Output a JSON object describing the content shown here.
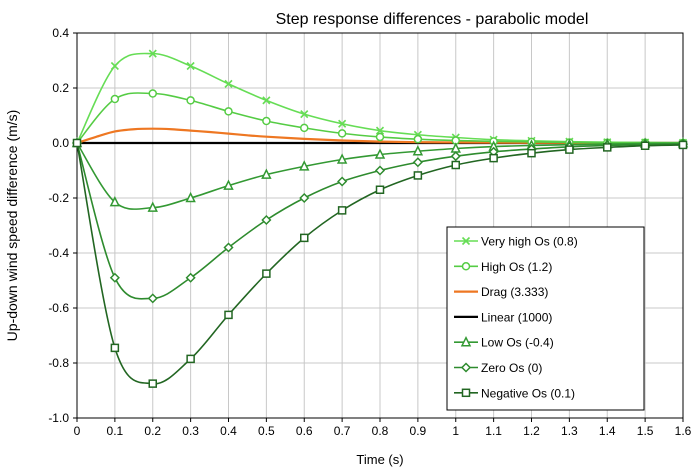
{
  "chart_data": {
    "type": "line",
    "title": "Step response  differences - parabolic model",
    "xlabel": "Time (s)",
    "ylabel": "Up-down wind speed difference (m/s)",
    "xlim": [
      0,
      1.6
    ],
    "ylim": [
      -1.0,
      0.4
    ],
    "x_ticks": [
      "0",
      "0.1",
      "0.2",
      "0.3",
      "0.4",
      "0.5",
      "0.6",
      "0.7",
      "0.8",
      "0.9",
      "1",
      "1.1",
      "1.2",
      "1.3",
      "1.4",
      "1.5",
      "1.6"
    ],
    "y_ticks": [
      "0.4",
      "0.2",
      "0.0",
      "-0.2",
      "-0.4",
      "-0.6",
      "-0.8",
      "-1.0"
    ],
    "grid": true,
    "legend_position": "lower-right",
    "series": [
      {
        "name": "Very high Os (0.8)",
        "color": "#66dd55",
        "marker": "x",
        "x": [
          0,
          0.1,
          0.2,
          0.3,
          0.4,
          0.5,
          0.6,
          0.7,
          0.8,
          0.9,
          1,
          1.1,
          1.2,
          1.3,
          1.4,
          1.5,
          1.6
        ],
        "values": [
          0,
          0.28,
          0.325,
          0.28,
          0.215,
          0.155,
          0.105,
          0.07,
          0.045,
          0.03,
          0.02,
          0.012,
          0.008,
          0.005,
          0.003,
          0.002,
          0.001
        ]
      },
      {
        "name": "High Os (1.2)",
        "color": "#55cc44",
        "marker": "circle",
        "x": [
          0,
          0.1,
          0.2,
          0.3,
          0.4,
          0.5,
          0.6,
          0.7,
          0.8,
          0.9,
          1,
          1.1,
          1.2,
          1.3,
          1.4,
          1.5,
          1.6
        ],
        "values": [
          0,
          0.16,
          0.18,
          0.155,
          0.115,
          0.08,
          0.055,
          0.035,
          0.022,
          0.014,
          0.009,
          0.006,
          0.004,
          0.002,
          0.001,
          0.001,
          0
        ]
      },
      {
        "name": "Drag (3.333)",
        "color": "#ee7722",
        "marker": "none",
        "x": [
          0,
          0.05,
          0.1,
          0.15,
          0.2,
          0.25,
          0.3,
          0.35,
          0.4,
          0.45,
          0.5,
          0.6,
          0.7,
          0.8,
          0.9,
          1,
          1.2,
          1.4,
          1.6
        ],
        "values": [
          0,
          0.022,
          0.042,
          0.05,
          0.052,
          0.05,
          0.045,
          0.04,
          0.034,
          0.028,
          0.023,
          0.015,
          0.009,
          0.005,
          0.003,
          0.002,
          0.001,
          0,
          0
        ]
      },
      {
        "name": "Linear (1000)",
        "color": "#000000",
        "marker": "none",
        "x": [
          0,
          1.6
        ],
        "values": [
          0,
          0
        ]
      },
      {
        "name": "Low Os (-0.4)",
        "color": "#339933",
        "marker": "triangle",
        "x": [
          0,
          0.1,
          0.2,
          0.3,
          0.4,
          0.5,
          0.6,
          0.7,
          0.8,
          0.9,
          1,
          1.1,
          1.2,
          1.3,
          1.4,
          1.5,
          1.6
        ],
        "values": [
          0,
          -0.215,
          -0.235,
          -0.2,
          -0.155,
          -0.115,
          -0.085,
          -0.06,
          -0.042,
          -0.03,
          -0.02,
          -0.013,
          -0.009,
          -0.006,
          -0.004,
          -0.002,
          -0.001
        ]
      },
      {
        "name": "Zero Os (0)",
        "color": "#2e8b2e",
        "marker": "diamond",
        "x": [
          0,
          0.1,
          0.2,
          0.3,
          0.4,
          0.5,
          0.6,
          0.7,
          0.8,
          0.9,
          1,
          1.1,
          1.2,
          1.3,
          1.4,
          1.5,
          1.6
        ],
        "values": [
          0,
          -0.49,
          -0.565,
          -0.49,
          -0.38,
          -0.28,
          -0.2,
          -0.14,
          -0.1,
          -0.07,
          -0.048,
          -0.032,
          -0.022,
          -0.014,
          -0.009,
          -0.006,
          -0.004
        ]
      },
      {
        "name": "Negative Os (0.1)",
        "color": "#226622",
        "marker": "square",
        "x": [
          0,
          0.1,
          0.2,
          0.3,
          0.4,
          0.5,
          0.6,
          0.7,
          0.8,
          0.9,
          1,
          1.1,
          1.2,
          1.3,
          1.4,
          1.5,
          1.6
        ],
        "values": [
          0,
          -0.745,
          -0.875,
          -0.785,
          -0.625,
          -0.475,
          -0.345,
          -0.245,
          -0.17,
          -0.118,
          -0.08,
          -0.055,
          -0.037,
          -0.024,
          -0.016,
          -0.01,
          -0.007
        ]
      }
    ]
  }
}
